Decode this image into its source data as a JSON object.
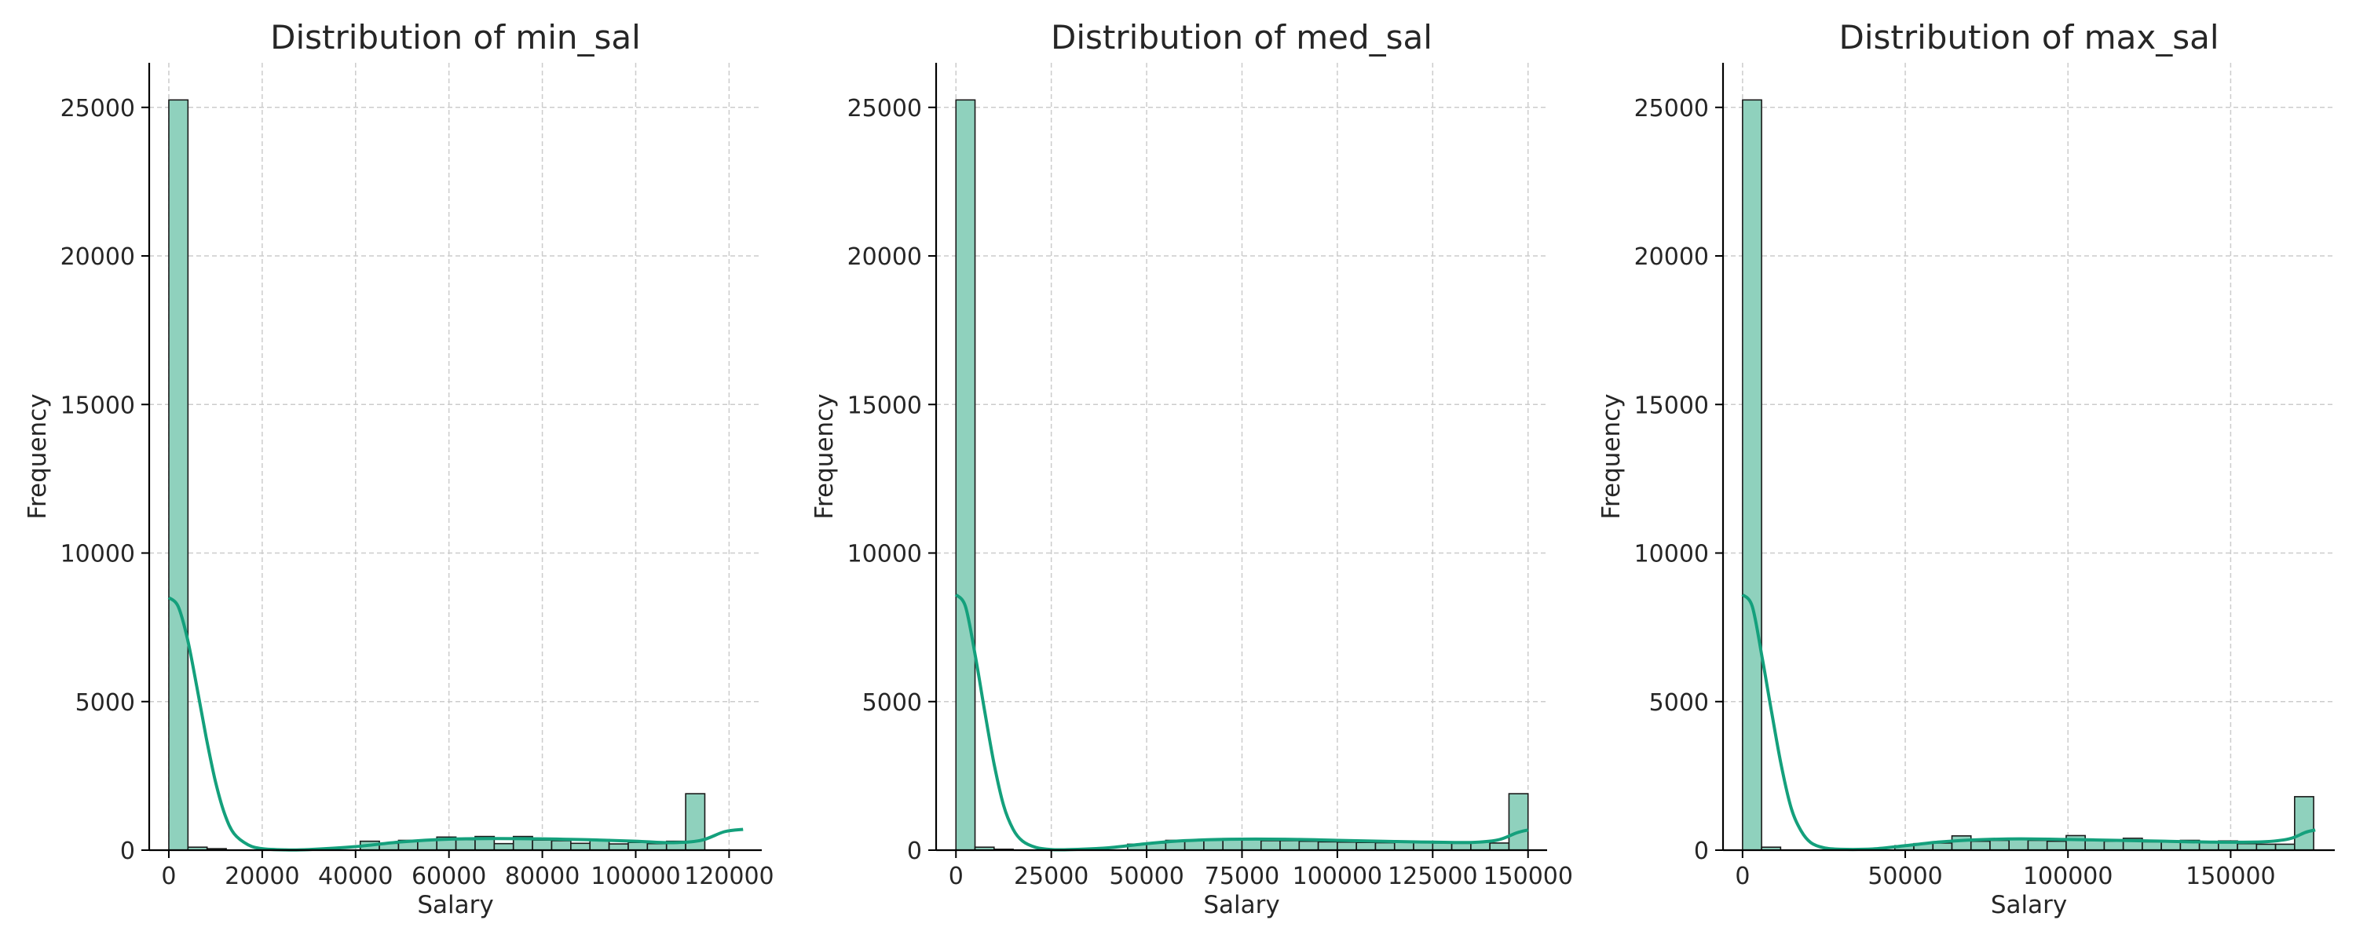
{
  "colors": {
    "bar_fill": "#8fd1bd",
    "bar_edge": "#1a1a1a",
    "kde": "#14a07c",
    "grid": "#cccccc",
    "axis": "#000000"
  },
  "chart_data": [
    {
      "type": "bar",
      "title": "Distribution of min_sal",
      "xlabel": "Salary",
      "ylabel": "Frequency",
      "xlim": [
        -4200,
        127000
      ],
      "ylim": [
        0,
        26500
      ],
      "xticks": [
        0,
        20000,
        40000,
        60000,
        80000,
        100000,
        120000
      ],
      "yticks": [
        0,
        5000,
        10000,
        15000,
        20000,
        25000
      ],
      "grid": true,
      "bin_start": 0,
      "bin_width": 4100,
      "values": [
        25250,
        100,
        50,
        0,
        0,
        0,
        0,
        0,
        0,
        0,
        300,
        230,
        330,
        330,
        440,
        350,
        460,
        220,
        460,
        340,
        320,
        230,
        360,
        210,
        260,
        220,
        300,
        1900
      ],
      "kde": {
        "x": [
          0,
          2000,
          4000,
          6000,
          8000,
          10000,
          12000,
          14000,
          17000,
          20000,
          25000,
          30000,
          40000,
          50000,
          60000,
          70000,
          80000,
          90000,
          100000,
          108000,
          114000,
          119000,
          123000
        ],
        "y": [
          8500,
          8200,
          7100,
          5500,
          3800,
          2300,
          1200,
          550,
          180,
          50,
          10,
          20,
          120,
          280,
          370,
          390,
          380,
          350,
          300,
          250,
          330,
          620,
          700
        ]
      }
    },
    {
      "type": "bar",
      "title": "Distribution of med_sal",
      "xlabel": "Salary",
      "ylabel": "Frequency",
      "xlim": [
        -5200,
        155000
      ],
      "ylim": [
        0,
        26500
      ],
      "xticks": [
        0,
        25000,
        50000,
        75000,
        100000,
        125000,
        150000
      ],
      "yticks": [
        0,
        5000,
        10000,
        15000,
        20000,
        25000
      ],
      "grid": true,
      "bin_start": 0,
      "bin_width": 5000,
      "values": [
        25250,
        100,
        30,
        0,
        0,
        0,
        0,
        0,
        0,
        200,
        240,
        330,
        340,
        350,
        390,
        380,
        320,
        320,
        300,
        280,
        270,
        260,
        250,
        260,
        260,
        240,
        230,
        270,
        240,
        1900
      ],
      "kde": {
        "x": [
          0,
          2500,
          5000,
          7500,
          10000,
          12500,
          15000,
          17500,
          21000,
          25000,
          30000,
          40000,
          50000,
          60000,
          75000,
          90000,
          100000,
          115000,
          125000,
          135000,
          142000,
          147000,
          150000
        ],
        "y": [
          8600,
          8200,
          6600,
          4700,
          2900,
          1500,
          700,
          300,
          90,
          20,
          20,
          80,
          220,
          320,
          370,
          360,
          330,
          290,
          270,
          260,
          340,
          580,
          680
        ]
      }
    },
    {
      "type": "bar",
      "title": "Distribution of max_sal",
      "xlabel": "Salary",
      "ylabel": "Frequency",
      "xlim": [
        -6000,
        182000
      ],
      "ylim": [
        0,
        26500
      ],
      "xticks": [
        0,
        50000,
        100000,
        150000
      ],
      "yticks": [
        0,
        5000,
        10000,
        15000,
        20000,
        25000
      ],
      "grid": true,
      "bin_start": 0,
      "bin_width": 5850,
      "values": [
        25250,
        100,
        0,
        0,
        0,
        0,
        0,
        0,
        150,
        220,
        240,
        480,
        300,
        330,
        360,
        330,
        300,
        490,
        320,
        300,
        400,
        280,
        300,
        330,
        290,
        310,
        220,
        200,
        200,
        1800
      ],
      "kde": {
        "x": [
          0,
          3000,
          6000,
          9000,
          12000,
          15000,
          18000,
          21000,
          25000,
          30000,
          40000,
          50000,
          60000,
          70000,
          85000,
          100000,
          115000,
          130000,
          145000,
          160000,
          168000,
          173000,
          176000
        ],
        "y": [
          8600,
          8200,
          6500,
          4600,
          2800,
          1400,
          650,
          250,
          80,
          30,
          40,
          150,
          270,
          340,
          380,
          360,
          330,
          300,
          270,
          280,
          380,
          600,
          680
        ]
      }
    }
  ]
}
